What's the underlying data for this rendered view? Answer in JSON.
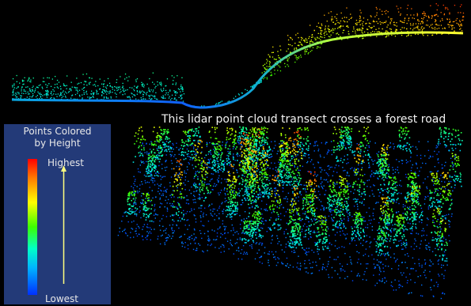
{
  "caption": "This lidar point cloud transect crosses a forest road",
  "legend": {
    "title_line1": "Points Colored",
    "title_line2": "by Height",
    "high_label": "Highest",
    "low_label": "Lowest",
    "panel_color": "#233a78",
    "arrow_color": "#ffff80"
  },
  "colors": {
    "background": "#000000",
    "ground_low": "#0030ff",
    "mid": "#00e0c0",
    "high": "#ffff00",
    "highest": "#ff2000"
  }
}
